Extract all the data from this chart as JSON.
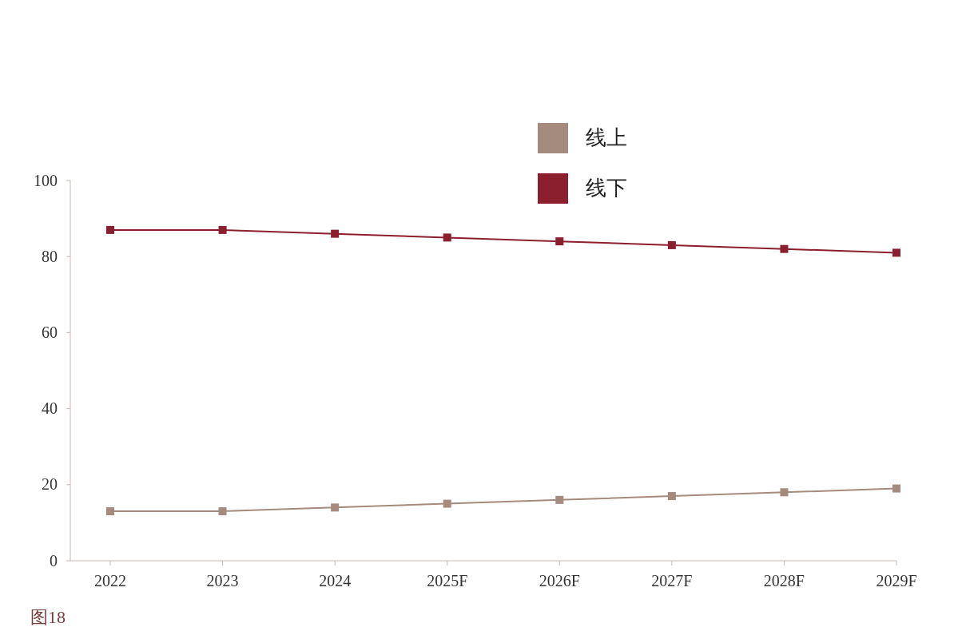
{
  "chart_data": {
    "type": "line",
    "categories": [
      "2022",
      "2023",
      "2024",
      "2025F",
      "2026F",
      "2027F",
      "2028F",
      "2029F"
    ],
    "series": [
      {
        "name": "线上",
        "color": "#a58a7e",
        "values": [
          13,
          13,
          14,
          15,
          16,
          17,
          18,
          19
        ]
      },
      {
        "name": "线下",
        "color": "#8b1f2d",
        "values": [
          87,
          87,
          86,
          85,
          84,
          83,
          82,
          81
        ]
      }
    ],
    "ylim": [
      0,
      100
    ],
    "yticks": [
      0,
      20,
      40,
      60,
      80,
      100
    ],
    "grid": false,
    "legend": "top",
    "marker": "square",
    "line_style": "solid",
    "annotations": [
      "图18"
    ]
  }
}
